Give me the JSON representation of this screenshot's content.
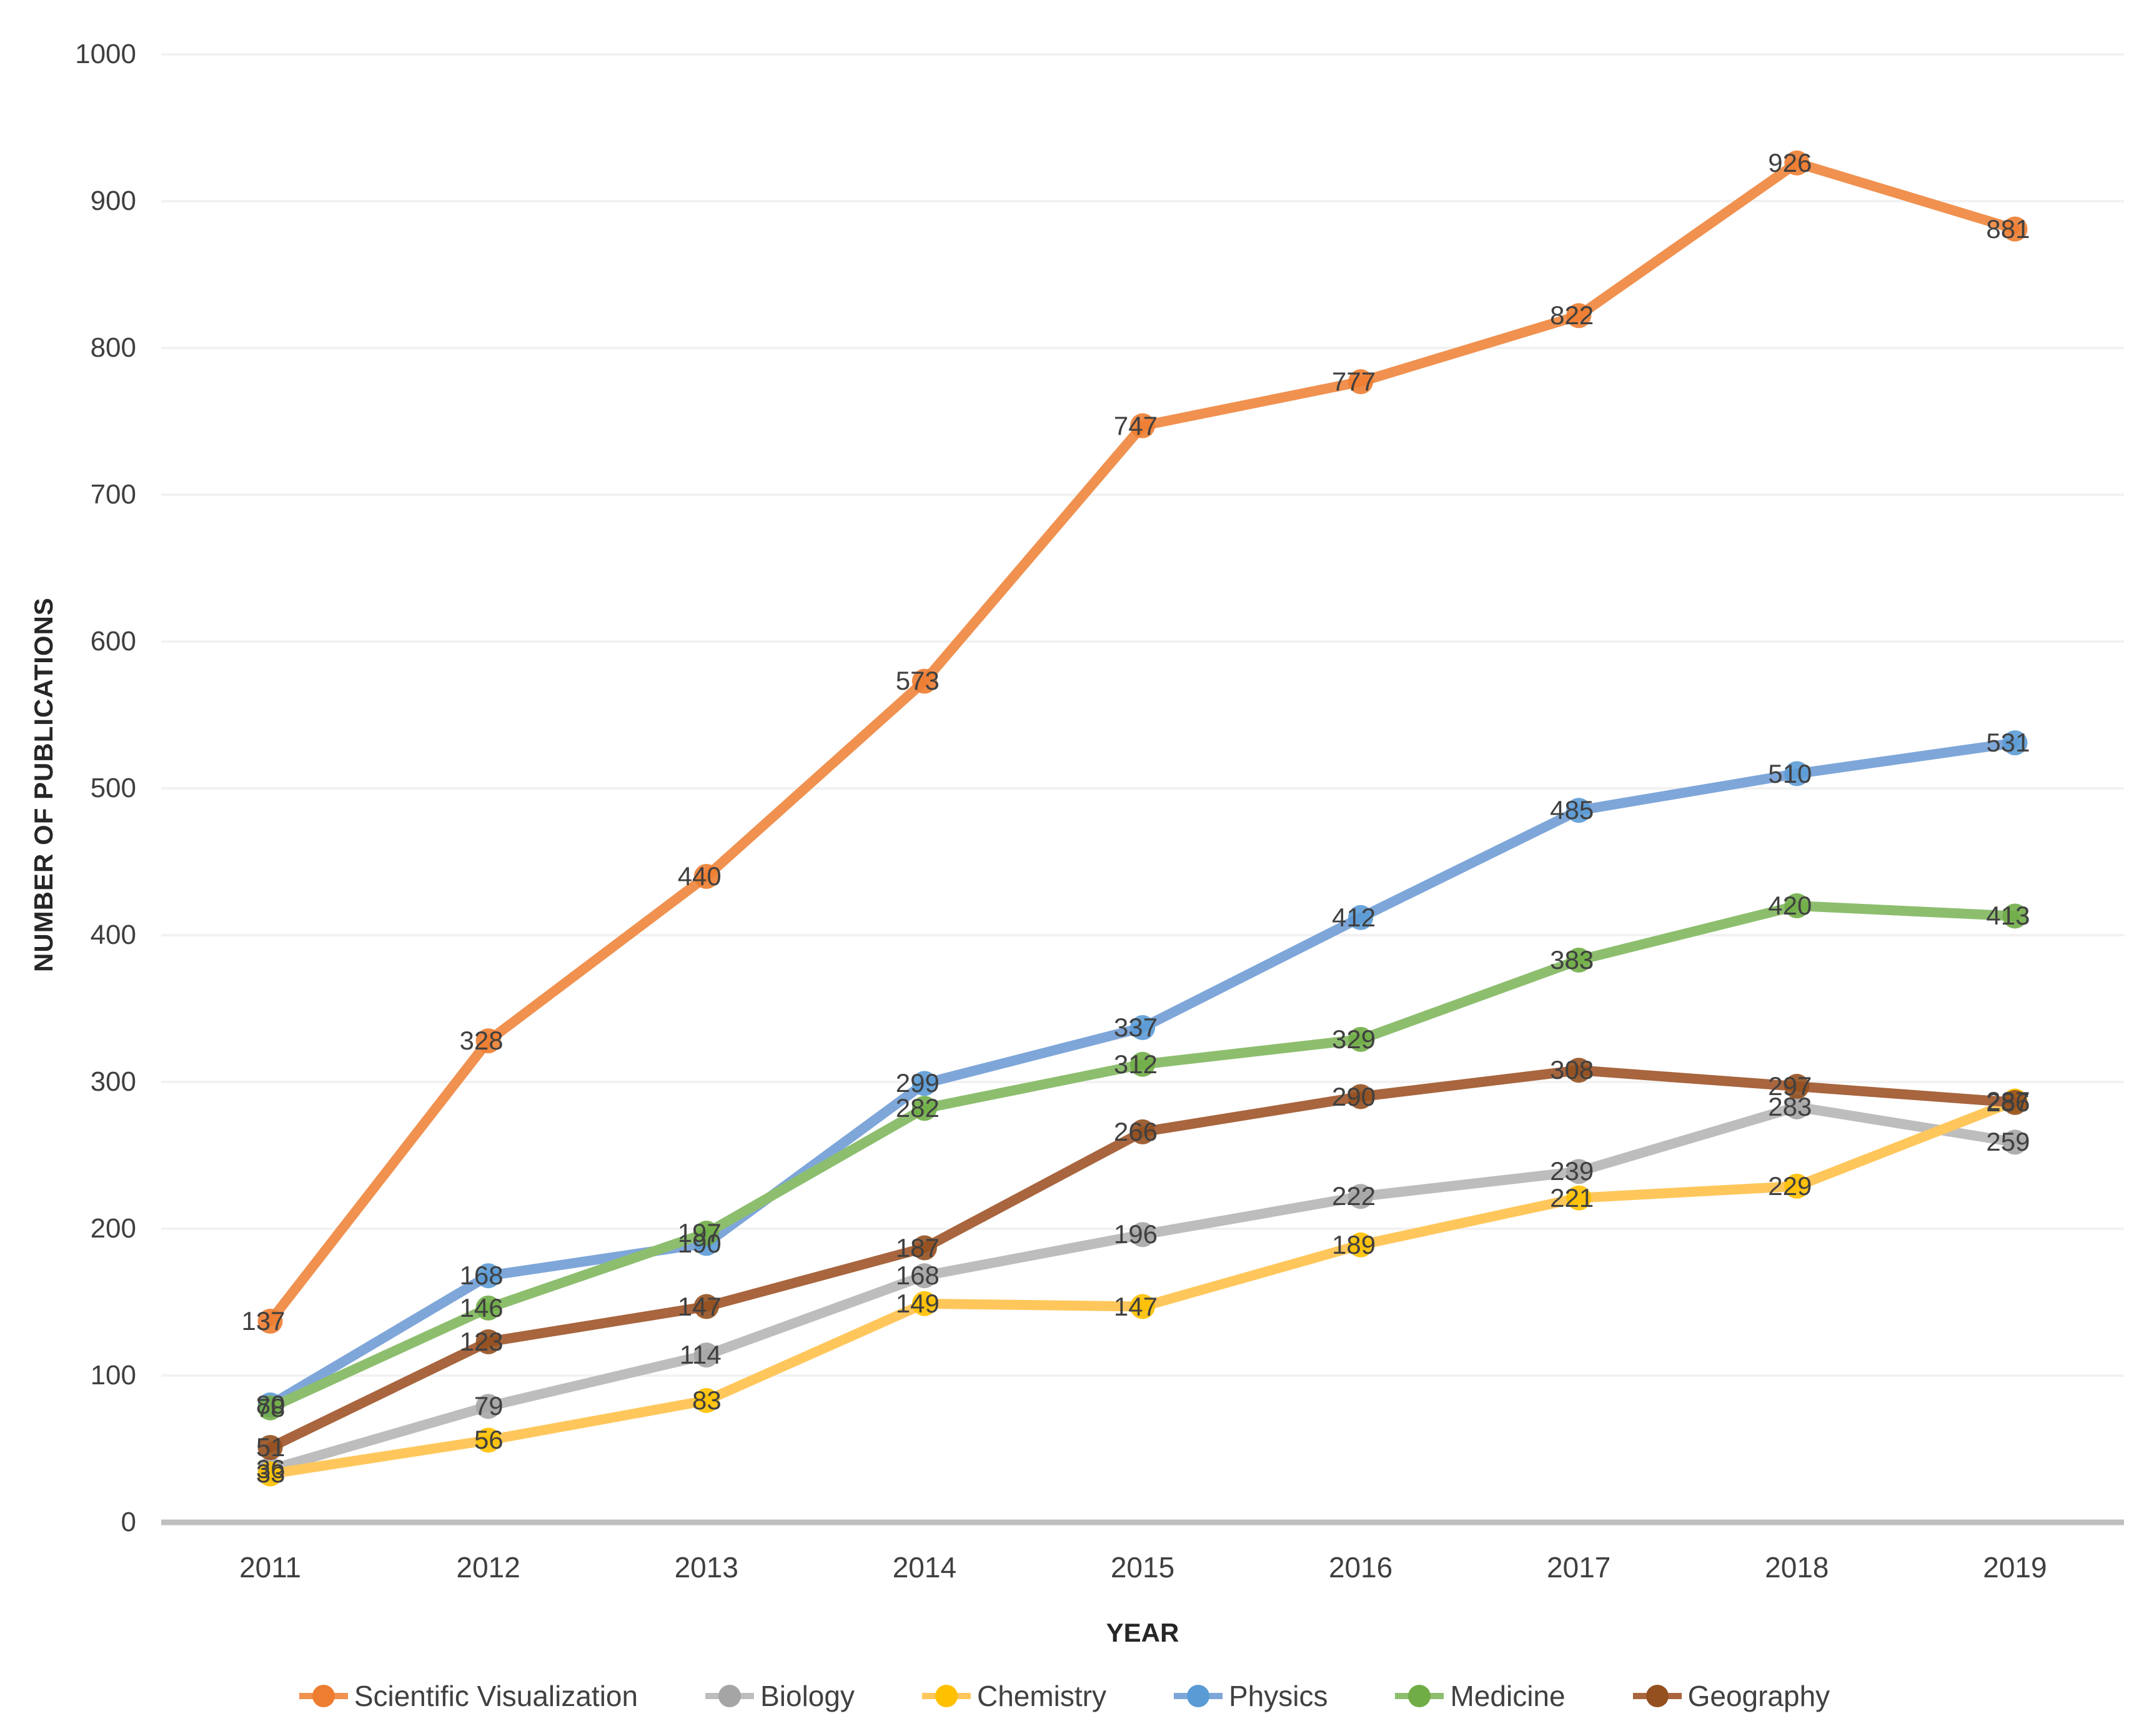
{
  "chart_data": {
    "type": "line",
    "title": "",
    "xlabel": "YEAR",
    "ylabel": "NUMBER OF PUBLICATIONS",
    "x": [
      "2011",
      "2012",
      "2013",
      "2014",
      "2015",
      "2016",
      "2017",
      "2018",
      "2019"
    ],
    "ylim": [
      0,
      1000
    ],
    "yticks": [
      0,
      100,
      200,
      300,
      400,
      500,
      600,
      700,
      800,
      900,
      1000
    ],
    "grid": true,
    "legend_position": "bottom",
    "colors": {
      "grid_color": "#f2f2f2",
      "axis_line_color": "#bfbfbf",
      "tick_label_color": "#3f3f3f",
      "data_label_color": "#404040"
    },
    "series": [
      {
        "name": "Scientific Visualization",
        "line_color": "#f0914f",
        "marker_color": "#ed7d31",
        "values": [
          137,
          328,
          440,
          573,
          747,
          777,
          822,
          926,
          881
        ]
      },
      {
        "name": "Biology",
        "line_color": "#bdbdbd",
        "marker_color": "#a5a5a5",
        "values": [
          36,
          79,
          114,
          168,
          196,
          222,
          239,
          283,
          259
        ]
      },
      {
        "name": "Chemistry",
        "line_color": "#ffc75b",
        "marker_color": "#ffc000",
        "values": [
          33,
          56,
          83,
          149,
          147,
          189,
          221,
          229,
          287
        ]
      },
      {
        "name": "Physics",
        "line_color": "#7ea6d9",
        "marker_color": "#5b9bd5",
        "values": [
          80,
          168,
          190,
          299,
          337,
          412,
          485,
          510,
          531
        ]
      },
      {
        "name": "Medicine",
        "line_color": "#8dbe6e",
        "marker_color": "#70ad47",
        "values": [
          78,
          146,
          197,
          282,
          312,
          329,
          383,
          420,
          413
        ]
      },
      {
        "name": "Geography",
        "line_color": "#a8653e",
        "marker_color": "#94501f",
        "values": [
          51,
          123,
          147,
          187,
          266,
          290,
          308,
          297,
          286
        ]
      }
    ]
  }
}
